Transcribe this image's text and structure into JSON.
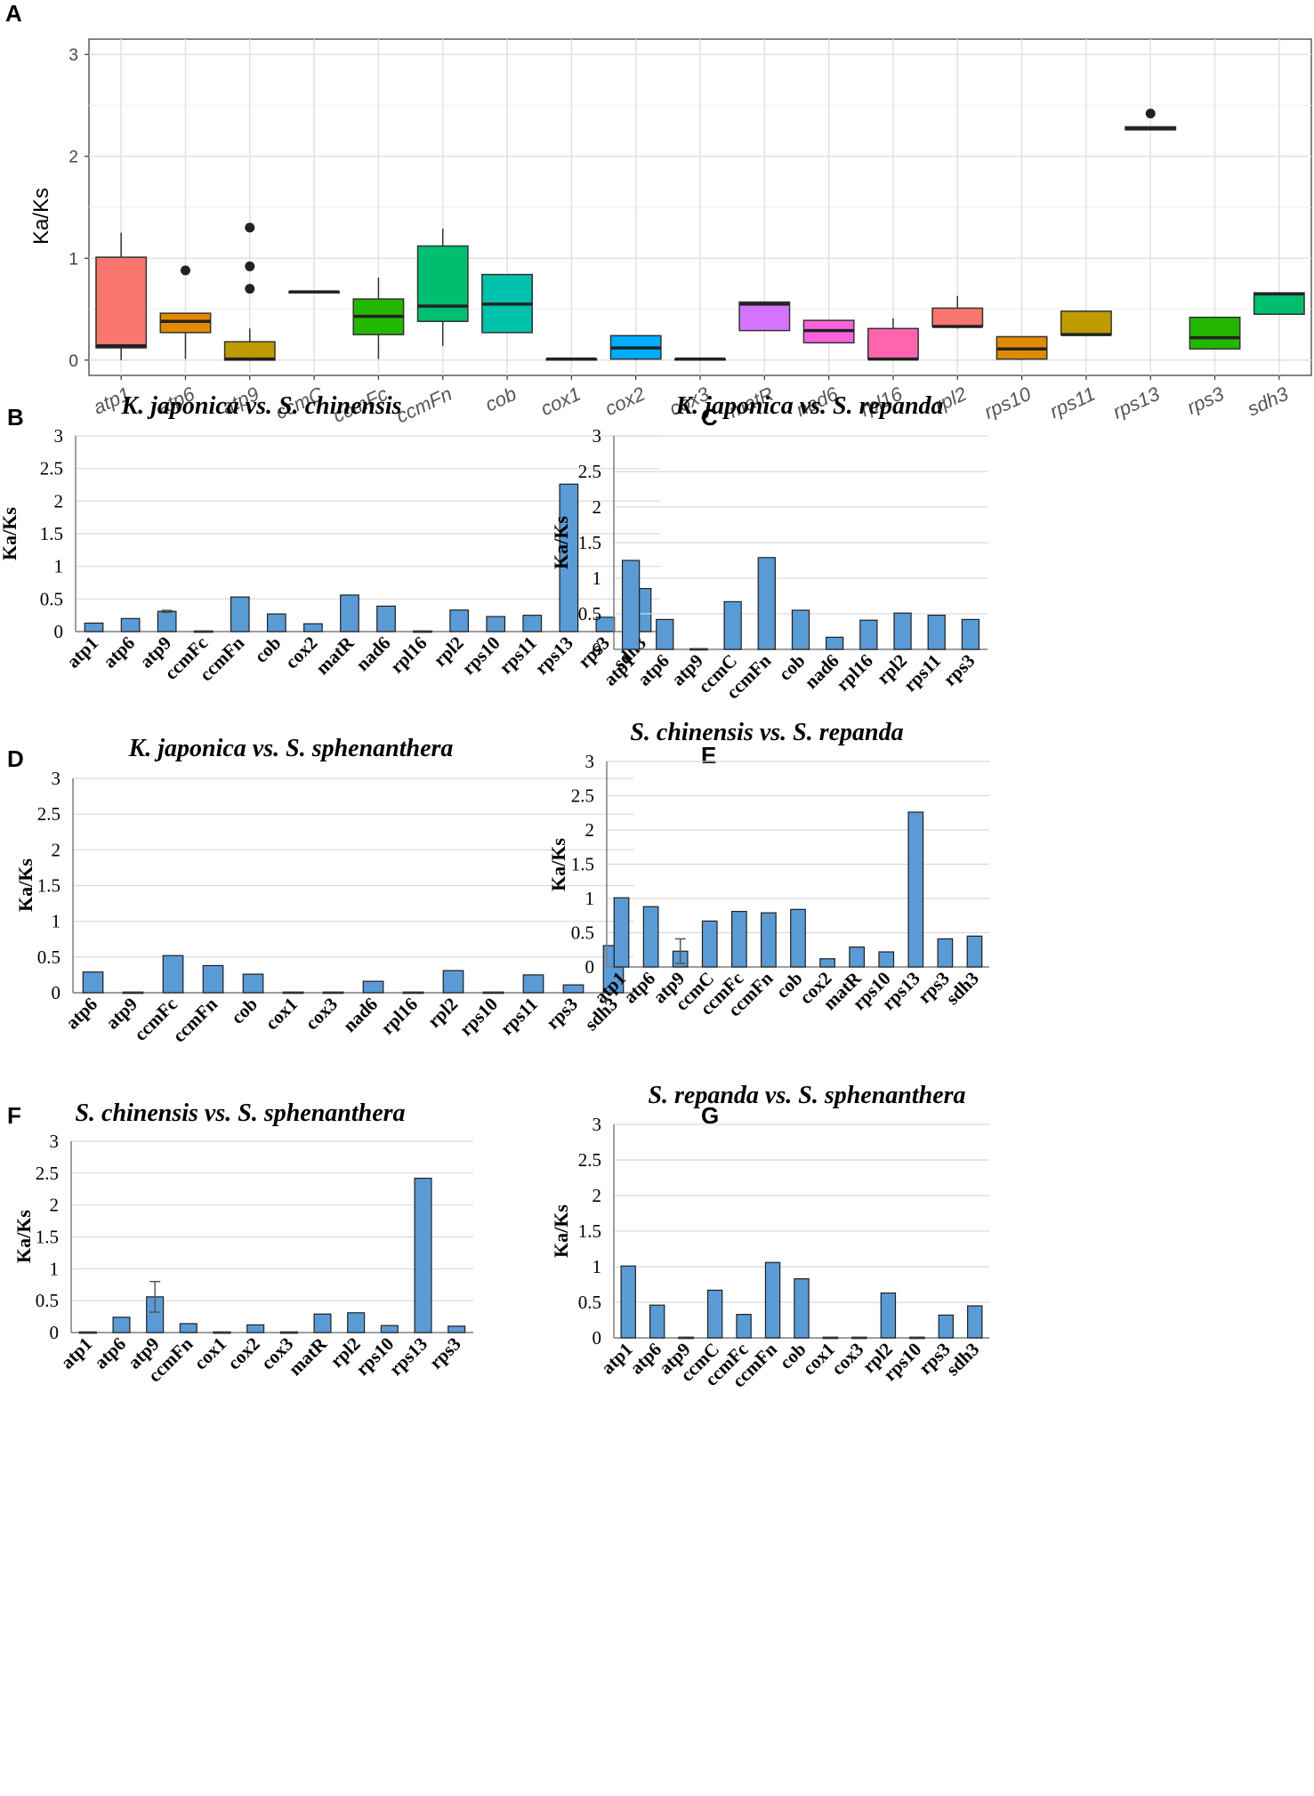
{
  "chart_data": [
    {
      "panel": "A",
      "type": "box",
      "title": "",
      "xlabel": "",
      "ylabel": "Ka/Ks",
      "ylim": [
        0,
        3
      ],
      "yticks": [
        "0",
        "1",
        "2",
        "3"
      ],
      "categories": [
        "atp1",
        "atp6",
        "atp9",
        "ccmC",
        "ccmFc",
        "ccmFn",
        "cob",
        "cox1",
        "cox2",
        "cox3",
        "matR",
        "nad6",
        "rpl16",
        "rpl2",
        "rps10",
        "rps11",
        "rps13",
        "rps3",
        "sdh3"
      ],
      "colors": [
        "#F8766D",
        "#E18A00",
        "#BE9C00",
        "#8CAB00",
        "#24B700",
        "#00BE70",
        "#00C1AB",
        "#00BBDA",
        "#00ACFC",
        "#8B93FF",
        "#D575FE",
        "#F962DD",
        "#FF65AC",
        "#F8766D",
        "#E18A00",
        "#BE9C00",
        "#8CAB00",
        "#24B700",
        "#00BE70"
      ],
      "boxes": [
        {
          "min": 0.0,
          "q1": 0.12,
          "median": 0.14,
          "q3": 1.01,
          "max": 1.25,
          "outliers": []
        },
        {
          "min": 0.01,
          "q1": 0.27,
          "median": 0.38,
          "q3": 0.46,
          "max": 0.46,
          "outliers": [
            0.88
          ]
        },
        {
          "min": 0.0,
          "q1": 0.0,
          "median": 0.01,
          "q3": 0.18,
          "max": 0.31,
          "outliers": [
            0.7,
            0.92,
            1.3
          ]
        },
        {
          "min": 0.67,
          "q1": 0.67,
          "median": 0.67,
          "q3": 0.67,
          "max": 0.67,
          "outliers": []
        },
        {
          "min": 0.01,
          "q1": 0.25,
          "median": 0.43,
          "q3": 0.6,
          "max": 0.81,
          "outliers": []
        },
        {
          "min": 0.14,
          "q1": 0.38,
          "median": 0.53,
          "q3": 1.12,
          "max": 1.29,
          "outliers": []
        },
        {
          "min": 0.27,
          "q1": 0.27,
          "median": 0.55,
          "q3": 0.84,
          "max": 0.84,
          "outliers": []
        },
        {
          "min": 0.01,
          "q1": 0.01,
          "median": 0.01,
          "q3": 0.01,
          "max": 0.01,
          "outliers": []
        },
        {
          "min": 0.0,
          "q1": 0.01,
          "median": 0.12,
          "q3": 0.24,
          "max": 0.24,
          "outliers": []
        },
        {
          "min": 0.01,
          "q1": 0.01,
          "median": 0.01,
          "q3": 0.01,
          "max": 0.01,
          "outliers": []
        },
        {
          "min": 0.29,
          "q1": 0.29,
          "median": 0.55,
          "q3": 0.57,
          "max": 0.57,
          "outliers": []
        },
        {
          "min": 0.17,
          "q1": 0.17,
          "median": 0.29,
          "q3": 0.39,
          "max": 0.39,
          "outliers": []
        },
        {
          "min": 0.0,
          "q1": 0.01,
          "median": 0.01,
          "q3": 0.31,
          "max": 0.41,
          "outliers": []
        },
        {
          "min": 0.31,
          "q1": 0.33,
          "median": 0.33,
          "q3": 0.51,
          "max": 0.63,
          "outliers": []
        },
        {
          "min": 0.0,
          "q1": 0.01,
          "median": 0.11,
          "q3": 0.23,
          "max": 0.23,
          "outliers": []
        },
        {
          "min": 0.25,
          "q1": 0.25,
          "median": 0.25,
          "q3": 0.48,
          "max": 0.48,
          "outliers": []
        },
        {
          "min": 2.26,
          "q1": 2.26,
          "median": 2.27,
          "q3": 2.29,
          "max": 2.29,
          "outliers": [
            2.42
          ]
        },
        {
          "min": 0.11,
          "q1": 0.11,
          "median": 0.22,
          "q3": 0.42,
          "max": 0.42,
          "outliers": []
        },
        {
          "min": 0.45,
          "q1": 0.45,
          "median": 0.65,
          "q3": 0.66,
          "max": 0.66,
          "outliers": []
        }
      ]
    },
    {
      "panel": "B",
      "type": "bar",
      "title": "K. japonica vs. S. chinensis",
      "ylabel": "Ka/Ks",
      "ylim": [
        0,
        3
      ],
      "yticks": [
        "0",
        "0.5",
        "1",
        "1.5",
        "2",
        "2.5",
        "3"
      ],
      "categories": [
        "atp1",
        "atp6",
        "atp9",
        "ccmFc",
        "ccmFn",
        "cob",
        "cox2",
        "matR",
        "nad6",
        "rpl16",
        "rpl2",
        "rps10",
        "rps11",
        "rps13",
        "rps3",
        "sdh3"
      ],
      "values": [
        0.13,
        0.2,
        0.31,
        0.01,
        0.53,
        0.27,
        0.12,
        0.56,
        0.39,
        0.01,
        0.33,
        0.23,
        0.25,
        2.26,
        0.22,
        0.66
      ],
      "errors": [
        0,
        0,
        0.015,
        0,
        0,
        0,
        0,
        0,
        0,
        0,
        0,
        0,
        0,
        0,
        0,
        0
      ]
    },
    {
      "panel": "C",
      "type": "bar",
      "title": "K. japonica vs. S. repanda",
      "ylabel": "Ka/Ks",
      "ylim": [
        0,
        3
      ],
      "yticks": [
        "0",
        "0.5",
        "1",
        "1.5",
        "2",
        "2.5",
        "3"
      ],
      "categories": [
        "atp1",
        "atp6",
        "atp9",
        "ccmC",
        "ccmFn",
        "cob",
        "nad6",
        "rpl16",
        "rpl2",
        "rps11",
        "rps3"
      ],
      "values": [
        1.25,
        0.42,
        0.01,
        0.67,
        1.29,
        0.55,
        0.17,
        0.41,
        0.51,
        0.48,
        0.42
      ],
      "errors": [
        0,
        0,
        0,
        0,
        0,
        0,
        0,
        0,
        0,
        0,
        0
      ]
    },
    {
      "panel": "D",
      "type": "bar",
      "title": "K. japonica vs. S. sphenanthera",
      "ylabel": "Ka/Ks",
      "ylim": [
        0,
        3
      ],
      "yticks": [
        "0",
        "0.5",
        "1",
        "1.5",
        "2",
        "2.5",
        "3"
      ],
      "categories": [
        "atp6",
        "atp9",
        "ccmFc",
        "ccmFn",
        "cob",
        "cox1",
        "cox3",
        "nad6",
        "rpl16",
        "rpl2",
        "rps10",
        "rps11",
        "rps3",
        "sdh3"
      ],
      "values": [
        0.29,
        0.01,
        0.52,
        0.38,
        0.26,
        0.01,
        0.01,
        0.16,
        0.01,
        0.31,
        0.01,
        0.25,
        0.11,
        0.66
      ],
      "errors": [
        0,
        0,
        0,
        0,
        0,
        0,
        0,
        0,
        0,
        0,
        0,
        0,
        0,
        0
      ]
    },
    {
      "panel": "E",
      "type": "bar",
      "title": "S. chinensis vs. S. repanda",
      "ylabel": "Ka/Ks",
      "ylim": [
        0,
        3
      ],
      "yticks": [
        "0",
        "0.5",
        "1",
        "1.5",
        "2",
        "2.5",
        "3"
      ],
      "categories": [
        "atp1",
        "atp6",
        "atp9",
        "ccmC",
        "ccmFc",
        "ccmFn",
        "cob",
        "cox2",
        "matR",
        "rps10",
        "rps13",
        "rps3",
        "sdh3"
      ],
      "values": [
        1.01,
        0.88,
        0.23,
        0.67,
        0.81,
        0.79,
        0.84,
        0.12,
        0.29,
        0.22,
        2.26,
        0.41,
        0.45
      ],
      "errors": [
        0,
        0,
        0.18,
        0,
        0,
        0,
        0,
        0,
        0,
        0,
        0,
        0,
        0
      ]
    },
    {
      "panel": "F",
      "type": "bar",
      "title": "S. chinensis vs. S. sphenanthera",
      "ylabel": "Ka/Ks",
      "ylim": [
        0,
        3
      ],
      "yticks": [
        "0",
        "0.5",
        "1",
        "1.5",
        "2",
        "2.5",
        "3"
      ],
      "categories": [
        "atp1",
        "atp6",
        "atp9",
        "ccmFn",
        "cox1",
        "cox2",
        "cox3",
        "matR",
        "rpl2",
        "rps10",
        "rps13",
        "rps3"
      ],
      "values": [
        0.01,
        0.24,
        0.56,
        0.14,
        0.01,
        0.12,
        0.01,
        0.29,
        0.31,
        0.11,
        2.42,
        0.1
      ],
      "errors": [
        0,
        0,
        0.24,
        0,
        0,
        0,
        0,
        0,
        0,
        0,
        0,
        0
      ]
    },
    {
      "panel": "G",
      "type": "bar",
      "title": "S. repanda vs. S. sphenanthera",
      "ylabel": "Ka/Ks",
      "ylim": [
        0,
        3
      ],
      "yticks": [
        "0",
        "0.5",
        "1",
        "1.5",
        "2",
        "2.5",
        "3"
      ],
      "categories": [
        "atp1",
        "atp6",
        "atp9",
        "ccmC",
        "ccmFc",
        "ccmFn",
        "cob",
        "cox1",
        "cox3",
        "rpl2",
        "rps10",
        "rps3",
        "sdh3"
      ],
      "values": [
        1.01,
        0.46,
        0.01,
        0.67,
        0.33,
        1.06,
        0.83,
        0.01,
        0.01,
        0.63,
        0.01,
        0.32,
        0.45
      ],
      "errors": [
        0,
        0,
        0,
        0,
        0,
        0,
        0,
        0,
        0,
        0,
        0,
        0,
        0
      ]
    }
  ]
}
